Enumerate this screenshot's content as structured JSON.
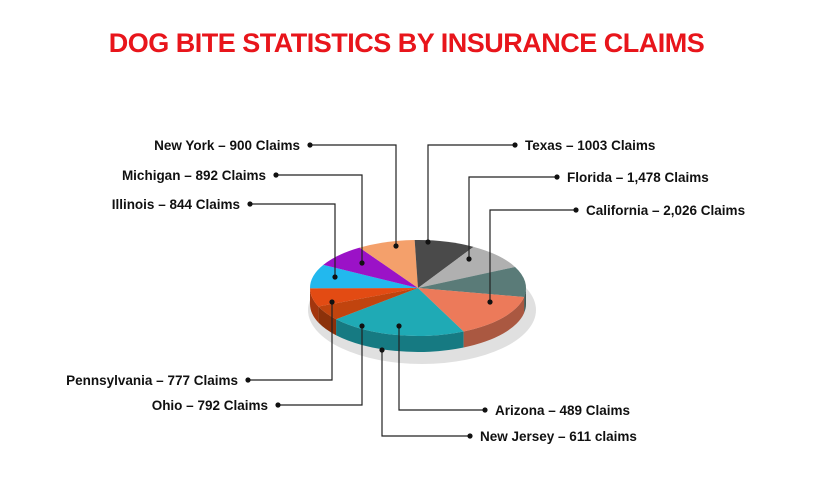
{
  "chart_data": {
    "type": "pie",
    "title": "DOG BITE STATISTICS BY INSURANCE CLAIMS",
    "slices": [
      {
        "label": "California – 2,026 Claims",
        "category": "California",
        "value": 2026,
        "color": "#1faab5"
      },
      {
        "label": "Arizona – 489 Claims",
        "category": "Arizona",
        "value": 489,
        "color": "#c1440e"
      },
      {
        "label": "New Jersey – 611 claims",
        "category": "New Jersey",
        "value": 611,
        "color": "#e34b13"
      },
      {
        "label": "Ohio – 792 Claims",
        "category": "Ohio",
        "value": 792,
        "color": "#22b8ee"
      },
      {
        "label": "Pennsylvania – 777 Claims",
        "category": "Pennsylvania",
        "value": 777,
        "color": "#9b12c7",
        "label_color": "#9b12c7"
      },
      {
        "label": "Illinois – 844 Claims",
        "category": "Illinois",
        "value": 844,
        "color": "#f4a06b"
      },
      {
        "label": "Michigan – 892 Claims",
        "category": "Michigan",
        "value": 892,
        "color": "#4a4a4a"
      },
      {
        "label": "New York – 900 Claims",
        "category": "New York",
        "value": 900,
        "color": "#b0b0b0"
      },
      {
        "label": "Texas – 1003 Claims",
        "category": "Texas",
        "value": 1003,
        "color": "#5a7b78"
      },
      {
        "label": "Florida – 1,478 Claims",
        "category": "Florida",
        "value": 1478,
        "color": "#ec7a5a"
      }
    ]
  }
}
